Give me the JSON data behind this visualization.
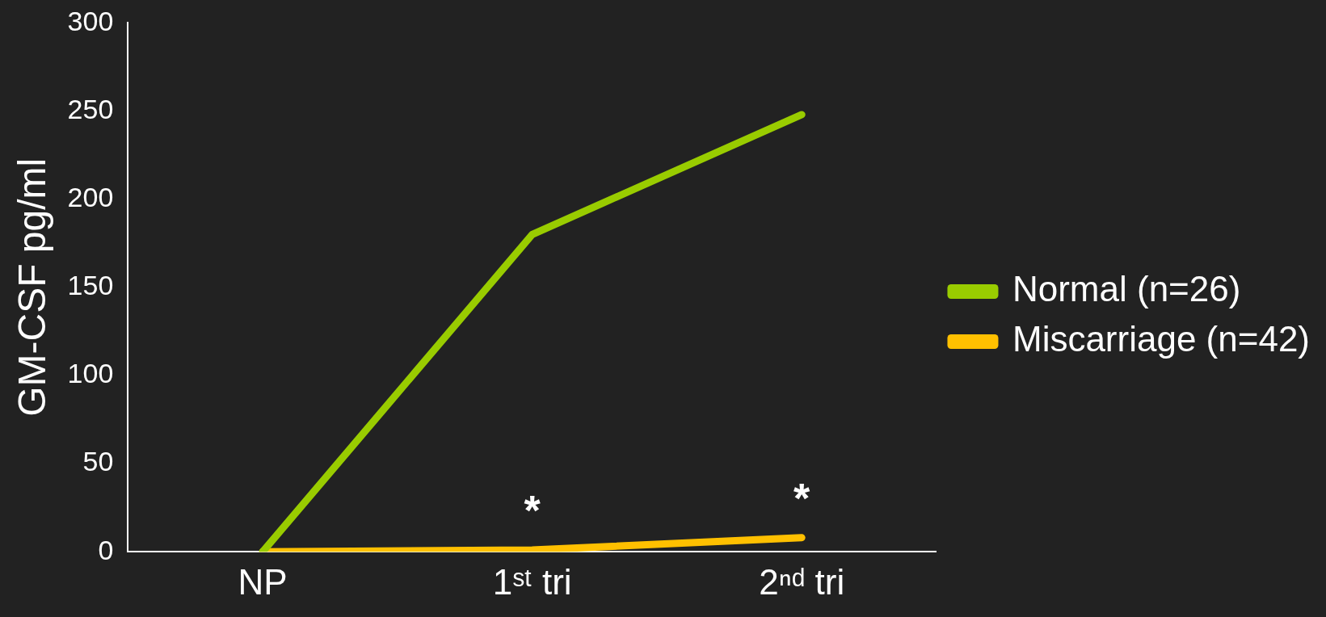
{
  "chart_data": {
    "type": "line",
    "ylabel": "GM-CSF pg/ml",
    "categories": [
      "NP",
      "1ˢᵗ tri",
      "2ⁿᵈ tri"
    ],
    "series": [
      {
        "name": "Normal (n=26)",
        "color": "#99cc00",
        "values": [
          0,
          180,
          248
        ]
      },
      {
        "name": "Miscarriage (n=42)",
        "color": "#ffc000",
        "values": [
          0,
          1,
          8
        ]
      }
    ],
    "ylim": [
      0,
      300
    ],
    "yticks": [
      0,
      50,
      100,
      150,
      200,
      250,
      300
    ],
    "grid": false,
    "legend": "right",
    "marker": "none",
    "line_style": "solid",
    "annotations": [
      {
        "text": "*",
        "x": "1ˢᵗ tri",
        "y": 1
      },
      {
        "text": "*",
        "x": "2ⁿᵈ tri",
        "y": 8
      }
    ]
  }
}
